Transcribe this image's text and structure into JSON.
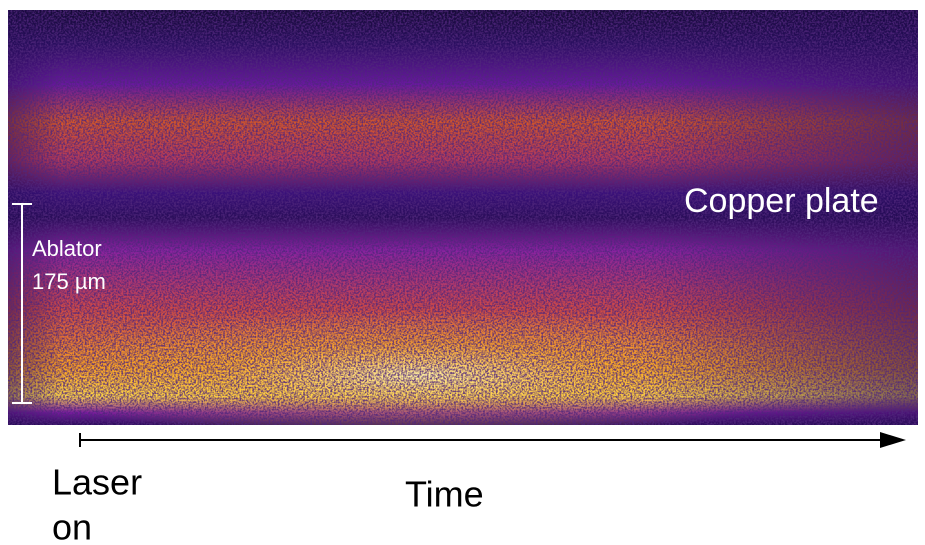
{
  "image_labels": {
    "copper_plate": "Copper plate",
    "ablator": "Ablator",
    "ablator_thickness": "175 µm"
  },
  "axis": {
    "start_label": [
      "Laser",
      "on"
    ],
    "label": "Time"
  }
}
